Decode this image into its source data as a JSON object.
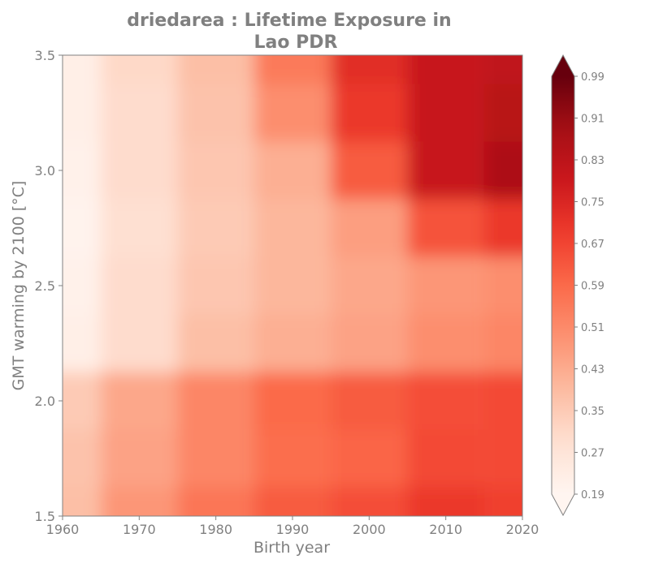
{
  "chart_data": {
    "type": "heatmap",
    "title_line1": "driedarea : Lifetime Exposure in",
    "title_line2": "Lao PDR",
    "xlabel": "Birth year",
    "ylabel": "GMT warming by 2100 [°C]",
    "xlim": [
      1960,
      2020
    ],
    "ylim": [
      1.5,
      3.5
    ],
    "xticks": [
      "1960",
      "1970",
      "1980",
      "1990",
      "2000",
      "2010",
      "2020"
    ],
    "xtick_values": [
      1960,
      1970,
      1980,
      1990,
      2000,
      2010,
      2020
    ],
    "yticks": [
      "1.5",
      "2.0",
      "2.5",
      "3.0",
      "3.5"
    ],
    "ytick_values": [
      1.5,
      2.0,
      2.5,
      3.0,
      3.5
    ],
    "colormap": "Reds",
    "colorbar": {
      "min": 0.19,
      "max": 0.99,
      "extend": "both",
      "ticks": [
        "0.19",
        "0.27",
        "0.35",
        "0.43",
        "0.51",
        "0.59",
        "0.67",
        "0.75",
        "0.83",
        "0.91",
        "0.99"
      ],
      "tick_values": [
        0.19,
        0.27,
        0.35,
        0.43,
        0.51,
        0.59,
        0.67,
        0.75,
        0.83,
        0.91,
        0.99
      ]
    },
    "x": [
      1960,
      1970,
      1980,
      1990,
      2000,
      2010,
      2020
    ],
    "y": [
      1.5,
      1.75,
      2.0,
      2.25,
      2.5,
      2.75,
      3.0,
      3.25,
      3.5
    ],
    "z": [
      [
        0.38,
        0.48,
        0.56,
        0.62,
        0.65,
        0.7,
        0.68
      ],
      [
        0.37,
        0.45,
        0.52,
        0.58,
        0.6,
        0.66,
        0.66
      ],
      [
        0.35,
        0.44,
        0.52,
        0.59,
        0.62,
        0.65,
        0.66
      ],
      [
        0.22,
        0.3,
        0.38,
        0.42,
        0.45,
        0.5,
        0.52
      ],
      [
        0.21,
        0.3,
        0.36,
        0.4,
        0.44,
        0.48,
        0.5
      ],
      [
        0.2,
        0.29,
        0.35,
        0.4,
        0.46,
        0.64,
        0.7
      ],
      [
        0.21,
        0.3,
        0.36,
        0.42,
        0.62,
        0.8,
        0.87
      ],
      [
        0.22,
        0.3,
        0.37,
        0.5,
        0.7,
        0.8,
        0.84
      ],
      [
        0.22,
        0.31,
        0.38,
        0.55,
        0.73,
        0.8,
        0.82
      ]
    ]
  }
}
